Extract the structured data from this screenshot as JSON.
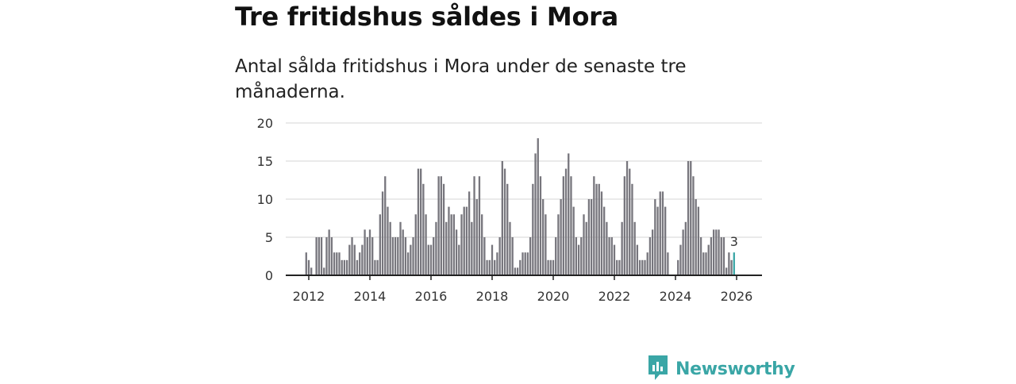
{
  "title": "Tre fritidshus såldes i Mora",
  "subtitle": "Antal sålda fritidshus i Mora under de senaste tre månaderna.",
  "brand": {
    "name": "Newsworthy",
    "color": "#3aa6a6"
  },
  "colors": {
    "bar": "#77767d",
    "highlight": "#3aa6a6",
    "grid": "#d4d4d4",
    "axis": "#222222"
  },
  "chart_data": {
    "type": "bar",
    "title": "Tre fritidshus såldes i Mora",
    "subtitle": "Antal sålda fritidshus i Mora under de senaste tre månaderna.",
    "xlabel": "",
    "ylabel": "",
    "start": [
      2011,
      12
    ],
    "ylim": [
      0,
      20
    ],
    "yticks": [
      0,
      5,
      10,
      15,
      20
    ],
    "xticks": [
      2012,
      2014,
      2016,
      2018,
      2020,
      2022,
      2024,
      2026
    ],
    "grid": true,
    "highlight_label": "3",
    "values": [
      3,
      2,
      1,
      0,
      5,
      5,
      5,
      1,
      5,
      6,
      5,
      3,
      3,
      3,
      2,
      2,
      2,
      4,
      5,
      4,
      2,
      3,
      4,
      6,
      5,
      6,
      5,
      2,
      2,
      8,
      11,
      13,
      9,
      7,
      5,
      5,
      5,
      7,
      6,
      5,
      3,
      4,
      5,
      8,
      14,
      14,
      12,
      8,
      4,
      4,
      5,
      7,
      13,
      13,
      12,
      7,
      9,
      8,
      8,
      6,
      4,
      8,
      9,
      9,
      11,
      7,
      13,
      10,
      13,
      8,
      5,
      2,
      2,
      4,
      2,
      3,
      5,
      15,
      14,
      12,
      7,
      5,
      1,
      1,
      2,
      3,
      3,
      3,
      5,
      12,
      16,
      18,
      13,
      10,
      8,
      2,
      2,
      2,
      5,
      8,
      10,
      13,
      14,
      16,
      13,
      9,
      5,
      4,
      5,
      8,
      7,
      10,
      10,
      13,
      12,
      12,
      11,
      9,
      7,
      5,
      5,
      4,
      2,
      2,
      7,
      13,
      15,
      14,
      12,
      7,
      4,
      2,
      2,
      2,
      3,
      5,
      6,
      10,
      9,
      11,
      11,
      9,
      3,
      0,
      0,
      0,
      2,
      4,
      6,
      7,
      15,
      15,
      13,
      10,
      9,
      5,
      3,
      3,
      4,
      5,
      6,
      6,
      6,
      5,
      5,
      1,
      3,
      2,
      3
    ]
  }
}
